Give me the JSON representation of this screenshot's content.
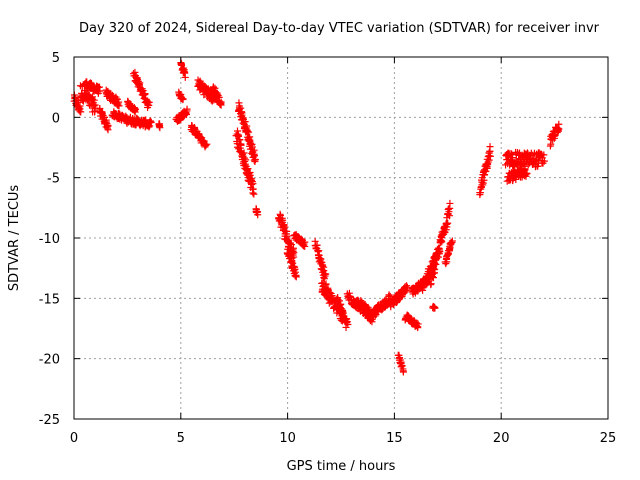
{
  "chart_data": {
    "type": "scatter",
    "title": "Day 320 of 2024, Sidereal Day-to-day VTEC variation (SDTVAR) for receiver invr",
    "xlabel": "GPS time / hours",
    "ylabel": "SDTVAR / TECUs",
    "xlim": [
      0,
      25
    ],
    "ylim": [
      -25,
      5
    ],
    "xticks": [
      0,
      5,
      10,
      15,
      20,
      25
    ],
    "yticks": [
      -25,
      -20,
      -15,
      -10,
      -5,
      0,
      5
    ],
    "grid": true,
    "marker": "+",
    "series": [
      {
        "name": "SDTVAR",
        "color": "#ff0000",
        "segments": [
          {
            "x0": 0.0,
            "y0": 1.5,
            "x1": 0.3,
            "y1": 0.6,
            "spread": 0.8
          },
          {
            "x0": 0.3,
            "y0": 2.2,
            "x1": 1.0,
            "y1": 0.8,
            "spread": 1.2
          },
          {
            "x0": 0.5,
            "y0": 2.8,
            "x1": 1.2,
            "y1": 2.2,
            "spread": 0.6
          },
          {
            "x0": 1.2,
            "y0": 0.5,
            "x1": 1.6,
            "y1": -0.8,
            "spread": 0.6
          },
          {
            "x0": 1.5,
            "y0": 2.0,
            "x1": 2.1,
            "y1": 1.2,
            "spread": 0.6
          },
          {
            "x0": 1.8,
            "y0": 0.3,
            "x1": 2.5,
            "y1": -0.2,
            "spread": 0.5
          },
          {
            "x0": 2.5,
            "y0": -0.2,
            "x1": 3.6,
            "y1": -0.6,
            "spread": 0.6
          },
          {
            "x0": 2.8,
            "y0": 3.5,
            "x1": 3.5,
            "y1": 1.0,
            "spread": 0.7
          },
          {
            "x0": 2.5,
            "y0": 1.2,
            "x1": 2.9,
            "y1": 0.5,
            "spread": 0.4
          },
          {
            "x0": 4.0,
            "y0": -0.5,
            "x1": 4.0,
            "y1": -0.8,
            "spread": 0.3
          },
          {
            "x0": 4.8,
            "y0": -0.2,
            "x1": 5.3,
            "y1": 0.5,
            "spread": 0.5
          },
          {
            "x0": 5.0,
            "y0": 4.5,
            "x1": 5.2,
            "y1": 3.5,
            "spread": 0.4
          },
          {
            "x0": 4.9,
            "y0": 2.0,
            "x1": 5.1,
            "y1": 1.5,
            "spread": 0.3
          },
          {
            "x0": 5.5,
            "y0": -0.8,
            "x1": 6.2,
            "y1": -2.4,
            "spread": 0.5
          },
          {
            "x0": 5.8,
            "y0": 2.8,
            "x1": 6.6,
            "y1": 1.5,
            "spread": 0.9
          },
          {
            "x0": 6.5,
            "y0": 2.5,
            "x1": 6.9,
            "y1": 1.0,
            "spread": 0.6
          },
          {
            "x0": 7.7,
            "y0": 1.0,
            "x1": 8.5,
            "y1": -3.5,
            "spread": 0.8
          },
          {
            "x0": 7.6,
            "y0": -1.5,
            "x1": 8.4,
            "y1": -6.0,
            "spread": 1.2
          },
          {
            "x0": 8.5,
            "y0": -7.6,
            "x1": 8.6,
            "y1": -8.0,
            "spread": 0.3
          },
          {
            "x0": 9.6,
            "y0": -8.2,
            "x1": 10.3,
            "y1": -11.5,
            "spread": 1.1
          },
          {
            "x0": 10.0,
            "y0": -11.0,
            "x1": 10.4,
            "y1": -13.2,
            "spread": 0.6
          },
          {
            "x0": 10.3,
            "y0": -9.8,
            "x1": 10.8,
            "y1": -10.5,
            "spread": 0.4
          },
          {
            "x0": 11.3,
            "y0": -10.5,
            "x1": 11.8,
            "y1": -13.5,
            "spread": 0.8
          },
          {
            "x0": 11.6,
            "y0": -14.0,
            "x1": 12.6,
            "y1": -16.5,
            "spread": 1.1
          },
          {
            "x0": 12.3,
            "y0": -15.0,
            "x1": 12.8,
            "y1": -17.3,
            "spread": 0.8
          },
          {
            "x0": 12.8,
            "y0": -14.8,
            "x1": 13.8,
            "y1": -16.2,
            "spread": 0.9
          },
          {
            "x0": 13.4,
            "y0": -15.5,
            "x1": 14.0,
            "y1": -16.8,
            "spread": 0.7
          },
          {
            "x0": 14.0,
            "y0": -16.3,
            "x1": 14.8,
            "y1": -15.0,
            "spread": 0.7
          },
          {
            "x0": 14.8,
            "y0": -15.5,
            "x1": 15.6,
            "y1": -14.2,
            "spread": 0.6
          },
          {
            "x0": 15.2,
            "y0": -19.8,
            "x1": 15.4,
            "y1": -21.0,
            "spread": 0.4
          },
          {
            "x0": 15.5,
            "y0": -16.5,
            "x1": 16.1,
            "y1": -17.2,
            "spread": 0.6
          },
          {
            "x0": 15.8,
            "y0": -14.5,
            "x1": 16.6,
            "y1": -13.5,
            "spread": 0.7
          },
          {
            "x0": 16.3,
            "y0": -14.0,
            "x1": 17.0,
            "y1": -11.5,
            "spread": 0.8
          },
          {
            "x0": 16.7,
            "y0": -13.5,
            "x1": 17.6,
            "y1": -7.5,
            "spread": 1.0
          },
          {
            "x0": 17.4,
            "y0": -12.0,
            "x1": 17.7,
            "y1": -10.3,
            "spread": 0.5
          },
          {
            "x0": 16.8,
            "y0": -15.7,
            "x1": 16.9,
            "y1": -15.8,
            "spread": 0.2
          },
          {
            "x0": 19.0,
            "y0": -6.0,
            "x1": 19.5,
            "y1": -2.8,
            "spread": 0.9
          },
          {
            "x0": 20.2,
            "y0": -3.5,
            "x1": 22.0,
            "y1": -3.5,
            "spread": 1.2
          },
          {
            "x0": 20.3,
            "y0": -5.0,
            "x1": 21.2,
            "y1": -4.5,
            "spread": 0.8
          },
          {
            "x0": 22.3,
            "y0": -2.0,
            "x1": 22.7,
            "y1": -0.7,
            "spread": 0.8
          }
        ]
      }
    ]
  }
}
